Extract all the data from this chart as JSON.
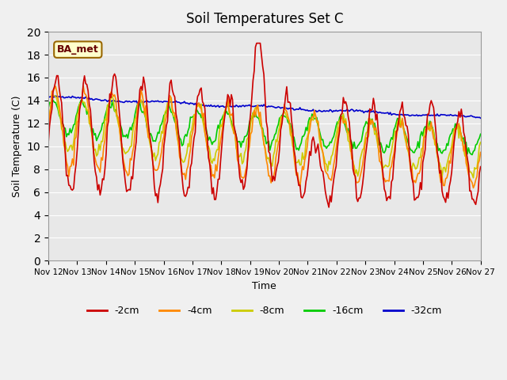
{
  "title": "Soil Temperatures Set C",
  "xlabel": "Time",
  "ylabel": "Soil Temperature (C)",
  "ylim": [
    0,
    20
  ],
  "yticks": [
    0,
    2,
    4,
    6,
    8,
    10,
    12,
    14,
    16,
    18,
    20
  ],
  "background_color": "#e8e8e8",
  "plot_bg_color": "#e8e8e8",
  "legend_label": "BA_met",
  "line_colors": {
    "-2cm": "#cc0000",
    "-4cm": "#ff8800",
    "-8cm": "#cccc00",
    "-16cm": "#00cc00",
    "-32cm": "#0000cc"
  },
  "x_tick_labels": [
    "Nov 12",
    "Nov 13",
    "Nov 14",
    "Nov 15",
    "Nov 16",
    "Nov 17",
    "Nov 18",
    "Nov 19",
    "Nov 20",
    "Nov 21",
    "Nov 22",
    "Nov 23",
    "Nov 24",
    "Nov 25",
    "Nov 26",
    "Nov 27"
  ],
  "n_days": 15,
  "points_per_day": 24
}
